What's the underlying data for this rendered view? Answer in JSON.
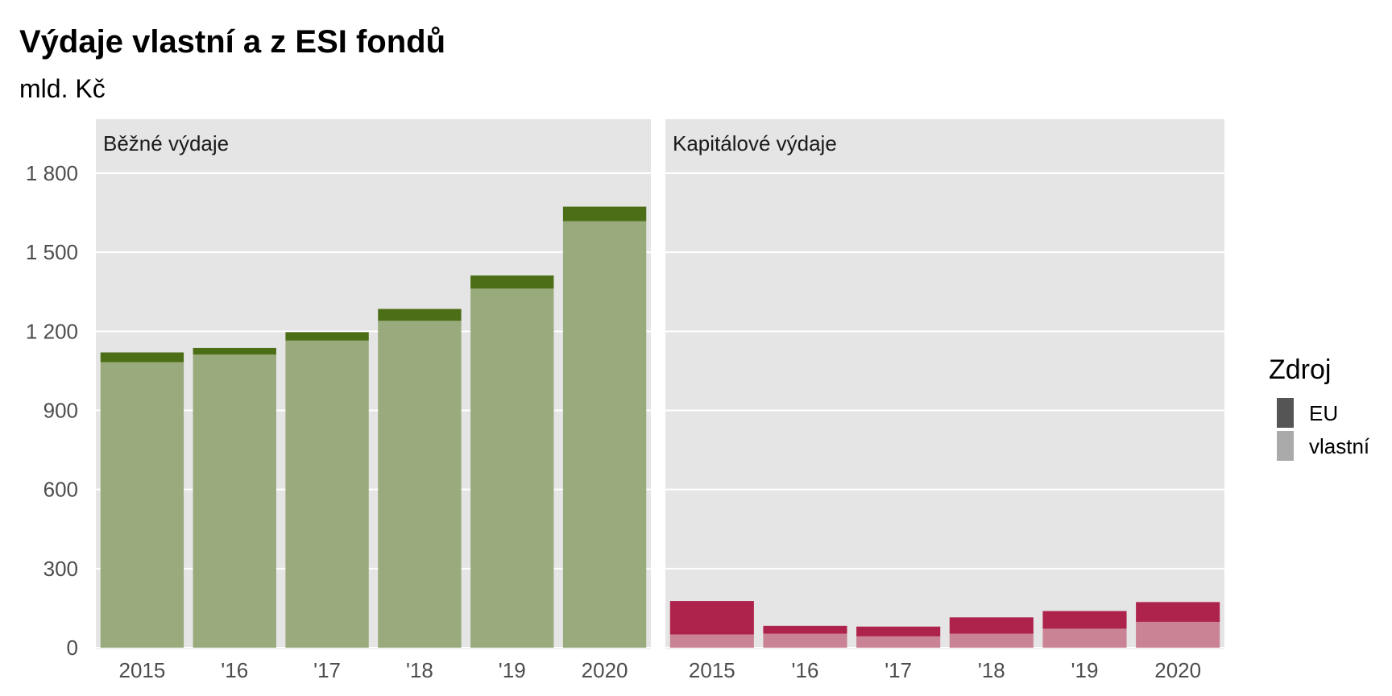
{
  "chart_data": {
    "type": "bar",
    "stacked": true,
    "title": "Výdaje vlastní a z ESI fondů",
    "subtitle": "mld. Kč",
    "ylim": [
      0,
      1950
    ],
    "yticks": [
      0,
      300,
      600,
      900,
      1200,
      1500,
      1800
    ],
    "ytick_labels": [
      "0",
      "300",
      "600",
      "900",
      "1 200",
      "1 500",
      "1 800"
    ],
    "categories": [
      "2015",
      "'16",
      "'17",
      "'18",
      "'19",
      "2020"
    ],
    "grid": true,
    "legend": {
      "title": "Zdroj",
      "position": "right",
      "entries": [
        {
          "label": "EU",
          "color": "#555555"
        },
        {
          "label": "vlastní",
          "color": "#aaaaaa"
        }
      ]
    },
    "panels": [
      {
        "label": "Běžné výdaje",
        "colors": {
          "EU": "#4b6e16",
          "vlastni": "#99aa7c"
        },
        "series": [
          {
            "name": "vlastní",
            "values": [
              1083,
              1112,
              1165,
              1240,
              1362,
              1618
            ]
          },
          {
            "name": "EU",
            "values": [
              37,
              25,
              32,
              45,
              50,
              55
            ]
          }
        ]
      },
      {
        "label": "Kapitálové výdaje",
        "colors": {
          "EU": "#ae234c",
          "vlastni": "#c98394"
        },
        "series": [
          {
            "name": "vlastní",
            "values": [
              50,
              53,
              43,
              53,
              72,
              98
            ]
          },
          {
            "name": "EU",
            "values": [
              127,
              30,
              37,
              62,
              67,
              75
            ]
          }
        ]
      }
    ]
  }
}
